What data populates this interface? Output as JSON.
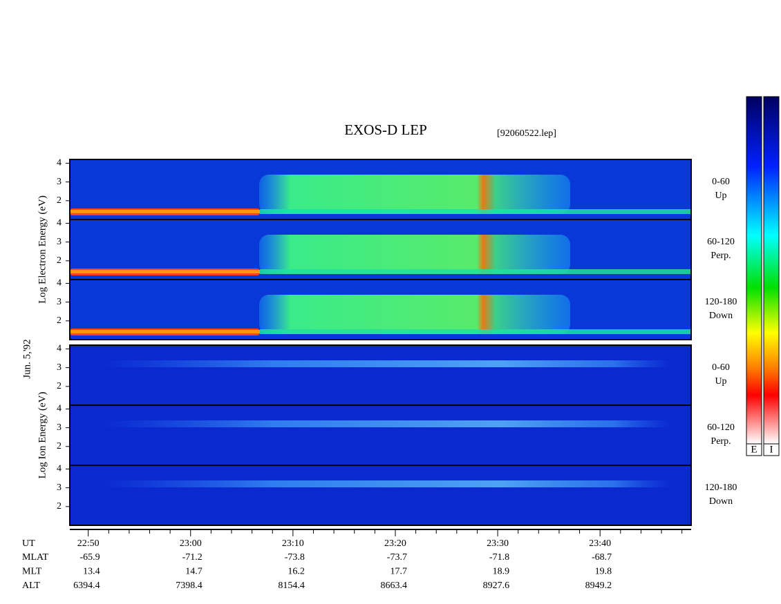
{
  "chart_data": {
    "type": "spectrogram",
    "title": "EXOS-D LEP",
    "subtitle": "[92060522.lep]",
    "date_label": "Jun. 5,'92",
    "xlim": [
      1368.2,
      1428.9
    ],
    "xticks": [
      {
        "value": 1370,
        "label": "22:50"
      },
      {
        "value": 1380,
        "label": "23:00"
      },
      {
        "value": 1390,
        "label": "23:10"
      },
      {
        "value": 1400,
        "label": "23:20"
      },
      {
        "value": 1410,
        "label": "23:30"
      },
      {
        "value": 1420,
        "label": "23:40"
      }
    ],
    "xminor_ticks": [
      1372,
      1374,
      1376,
      1378,
      1382,
      1384,
      1386,
      1388,
      1392,
      1394,
      1396,
      1398,
      1402,
      1404,
      1406,
      1408,
      1412,
      1414,
      1416,
      1418,
      1422,
      1424,
      1426,
      1428
    ],
    "time_label": "UT",
    "ephemeris": [
      {
        "name": "MLAT",
        "values": [
          -65.9,
          -71.2,
          -73.8,
          -73.7,
          -71.8,
          -68.7
        ]
      },
      {
        "name": "MLT",
        "values": [
          13.4,
          14.7,
          16.2,
          17.7,
          18.9,
          19.8
        ]
      },
      {
        "name": "ALT",
        "values": [
          6394.4,
          7398.4,
          8154.4,
          8663.4,
          8927.6,
          8949.2
        ]
      }
    ],
    "groups": [
      {
        "ylabel": "Log  Electron  Energy (eV)",
        "panels": [
          {
            "label": [
              "0-60",
              "Up"
            ],
            "ylim": [
              1,
              4.2
            ],
            "yticks": [
              2,
              3,
              4
            ]
          },
          {
            "label": [
              "60-120",
              "Perp."
            ],
            "ylim": [
              1,
              4.2
            ],
            "yticks": [
              2,
              3,
              4
            ]
          },
          {
            "label": [
              "120-180",
              "Down"
            ],
            "ylim": [
              1,
              4.2
            ],
            "yticks": [
              2,
              3,
              4
            ]
          }
        ]
      },
      {
        "ylabel": "Log  Ion  Energy (eV)",
        "panels": [
          {
            "label": [
              "0-60",
              "Up"
            ],
            "ylim": [
              1,
              4.2
            ],
            "yticks": [
              2,
              3,
              4
            ]
          },
          {
            "label": [
              "60-120",
              "Perp."
            ],
            "ylim": [
              1,
              4.2
            ],
            "yticks": [
              2,
              3,
              4
            ]
          },
          {
            "label": [
              "120-180",
              "Down"
            ],
            "ylim": [
              1,
              4.2
            ],
            "yticks": [
              2,
              3,
              4
            ]
          }
        ]
      }
    ],
    "colorbar_labels": [
      "E",
      "I"
    ]
  }
}
